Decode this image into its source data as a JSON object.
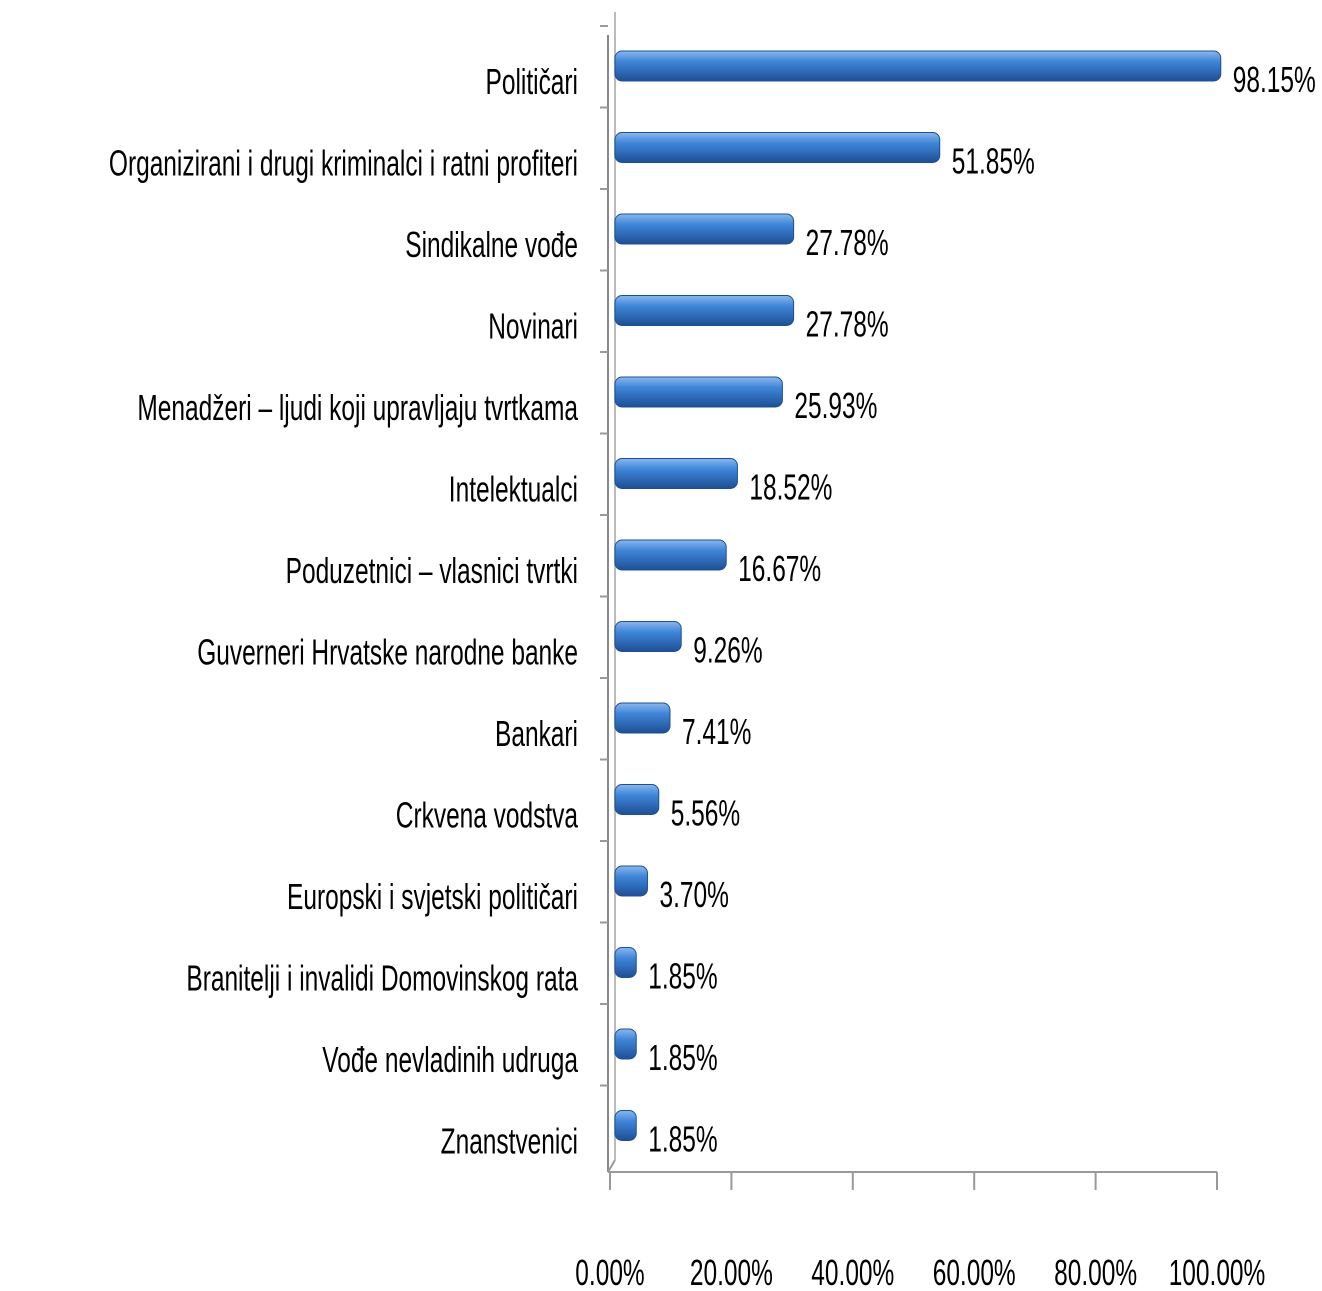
{
  "chart_data": {
    "type": "barh",
    "categories": [
      "Političari",
      "Organizirani i drugi kriminalci i ratni profiteri",
      "Sindikalne vođe",
      "Novinari",
      "Menadžeri – ljudi koji upravljaju tvrtkama",
      "Intelektualci",
      "Poduzetnici – vlasnici tvrtki",
      "Guverneri Hrvatske narodne banke",
      "Bankari",
      "Crkvena vodstva",
      "Europski i svjetski političari",
      "Branitelji i invalidi Domovinskog rata",
      "Vođe nevladinih udruga",
      "Znanstvenici"
    ],
    "values": [
      98.15,
      51.85,
      27.78,
      27.78,
      25.93,
      18.52,
      16.67,
      9.26,
      7.41,
      5.56,
      3.7,
      1.85,
      1.85,
      1.85
    ],
    "value_labels": [
      "98.15%",
      "51.85%",
      "27.78%",
      "27.78%",
      "25.93%",
      "18.52%",
      "16.67%",
      "9.26%",
      "7.41%",
      "5.56%",
      "3.70%",
      "1.85%",
      "1.85%",
      "1.85%"
    ],
    "color": "#3a7fd0",
    "xlim": [
      0,
      100
    ],
    "xticks": [
      {
        "value": 0,
        "label": "0.00%"
      },
      {
        "value": 20,
        "label": "20.00%"
      },
      {
        "value": 40,
        "label": "40.00%"
      },
      {
        "value": 60,
        "label": "60.00%"
      },
      {
        "value": 80,
        "label": "80.00%"
      },
      {
        "value": 100,
        "label": "100.00%"
      }
    ]
  }
}
